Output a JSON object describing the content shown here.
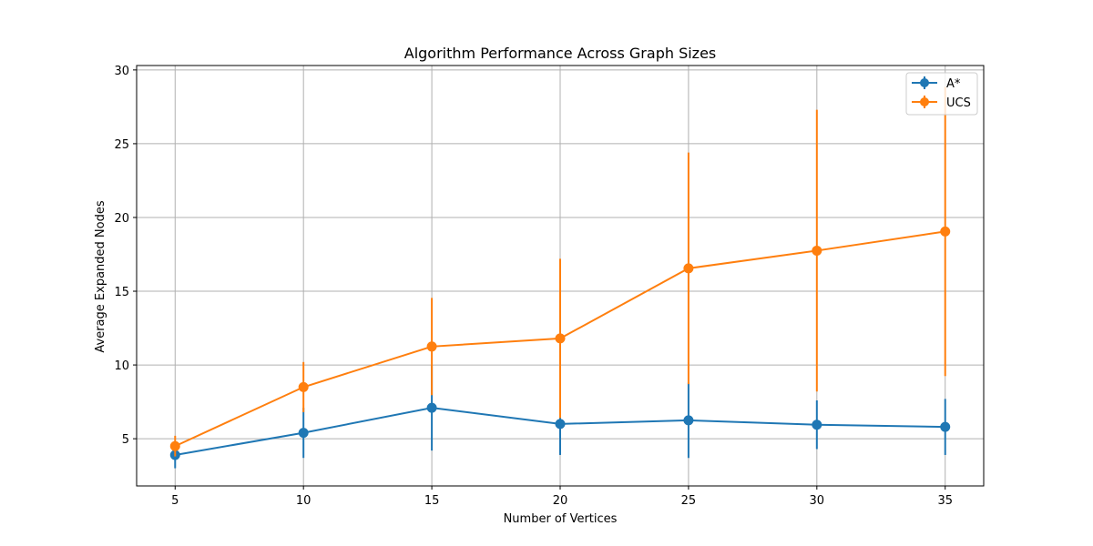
{
  "chart_data": {
    "type": "line",
    "title": "Algorithm Performance Across Graph Sizes",
    "xlabel": "Number of Vertices",
    "ylabel": "Average Expanded Nodes",
    "x": [
      5,
      10,
      15,
      20,
      25,
      30,
      35
    ],
    "xticks": [
      5,
      10,
      15,
      20,
      25,
      30,
      35
    ],
    "yticks": [
      5,
      10,
      15,
      20,
      25,
      30
    ],
    "xlim": [
      3.5,
      36.5
    ],
    "ylim": [
      1.8,
      30.3
    ],
    "grid": true,
    "legend_position": "top-right",
    "series": [
      {
        "name": "A*",
        "color": "#1f77b4",
        "values": [
          3.9,
          5.4,
          7.1,
          6.0,
          6.25,
          5.95,
          5.8
        ],
        "error": [
          0.9,
          1.7,
          2.9,
          2.1,
          2.55,
          1.65,
          1.9
        ]
      },
      {
        "name": "UCS",
        "color": "#ff7f0e",
        "values": [
          4.5,
          8.5,
          11.25,
          11.8,
          16.55,
          17.75,
          19.05
        ],
        "error": [
          0.7,
          1.7,
          3.3,
          5.4,
          7.85,
          9.55,
          9.8
        ]
      }
    ]
  }
}
